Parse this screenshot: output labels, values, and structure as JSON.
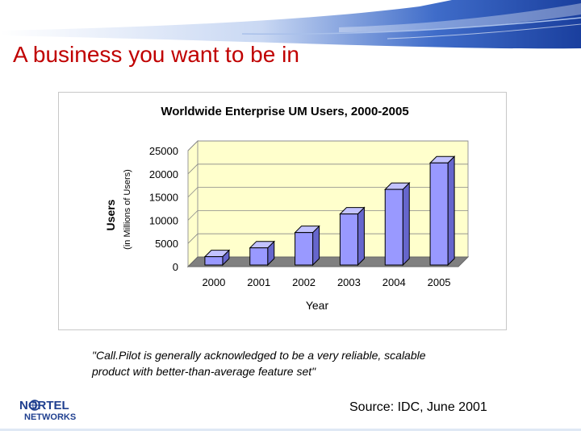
{
  "slide": {
    "title": "A business you want to be in",
    "quote_line1": "\"Call.Pilot is generally acknowledged to be a very reliable, scalable",
    "quote_line2": "product with better-than-average feature set\"",
    "source": "Source: IDC, June 2001",
    "logo": {
      "text": "NORTEL NETWORKS",
      "line1": "NORTEL",
      "line2": "NETWORKS",
      "icon": "nortel-globe-logo"
    }
  },
  "colors": {
    "title": "#c00000",
    "header_blue": "#1f4fb5",
    "plot_bg": "#ffffcc",
    "plot_floor": "#808080",
    "bar_front": "#9999ff",
    "bar_top": "#c2c2ff",
    "bar_side": "#6666cc"
  },
  "chart_data": {
    "type": "bar",
    "title": "Worldwide Enterprise UM Users, 2000-2005",
    "xlabel": "Year",
    "ylabel": "Users",
    "ylabel_sub": "(in Millions of Users)",
    "categories": [
      "2000",
      "2001",
      "2002",
      "2003",
      "2004",
      "2005"
    ],
    "values": [
      1800,
      3700,
      7000,
      11000,
      16300,
      22000
    ],
    "ylim": [
      0,
      25000
    ],
    "yticks": [
      0,
      5000,
      10000,
      15000,
      20000,
      25000
    ],
    "grid": true,
    "style": "3d"
  }
}
